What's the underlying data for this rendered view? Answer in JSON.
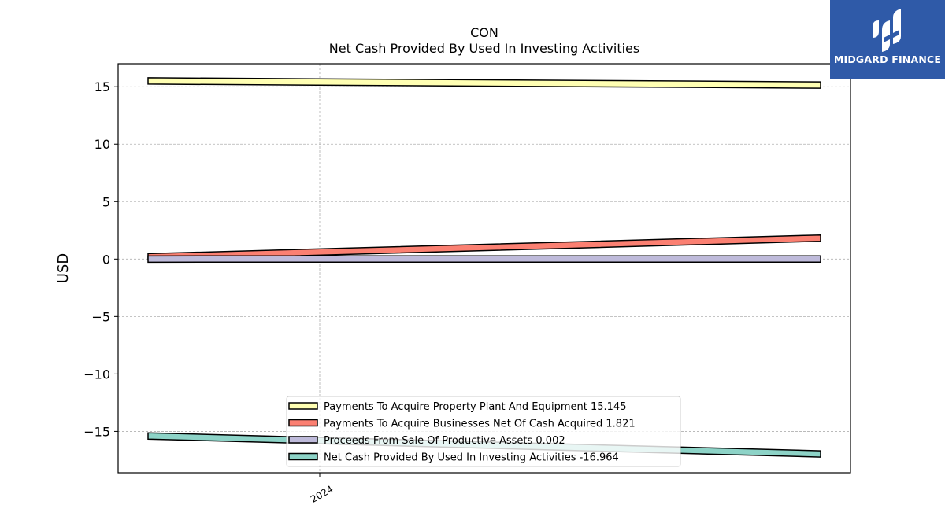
{
  "brand": {
    "name": "MIDGARD FINANCE",
    "bg_color": "#2f5aa8"
  },
  "chart_data": {
    "type": "line",
    "title": "CON",
    "subtitle": "Net Cash Provided By Used In Investing Activities",
    "ylabel": "USD",
    "xlabel": "",
    "ylim": [
      -18.6,
      17.0
    ],
    "yticks": [
      15,
      10,
      5,
      0,
      -5,
      -10,
      -15
    ],
    "ytick_labels": [
      "15",
      "10",
      "5",
      "0",
      "−5",
      "−10",
      "−15"
    ],
    "xticks": [
      "2024"
    ],
    "grid": true,
    "legend_position": "bottom-center",
    "series": [
      {
        "name": "Payments To Acquire Property Plant And Equipment",
        "legend": "Payments To Acquire Property Plant And Equipment  15.145",
        "color": "#ffffb3",
        "start": 15.5,
        "end": 15.145
      },
      {
        "name": "Payments To Acquire Businesses Net Of Cash Acquired",
        "legend": "Payments To Acquire Businesses Net Of Cash Acquired  1.821",
        "color": "#fb8072",
        "start": 0.2,
        "end": 1.821
      },
      {
        "name": "Proceeds From Sale Of Productive Assets",
        "legend": "Proceeds From Sale Of Productive Assets  0.002",
        "color": "#bebada",
        "start": 0.0,
        "end": 0.002
      },
      {
        "name": "Net Cash Provided By Used In Investing Activities",
        "legend": "Net Cash Provided By Used In Investing Activities  -16.964",
        "color": "#8dd3c7",
        "start": -15.4,
        "end": -16.964
      }
    ]
  }
}
